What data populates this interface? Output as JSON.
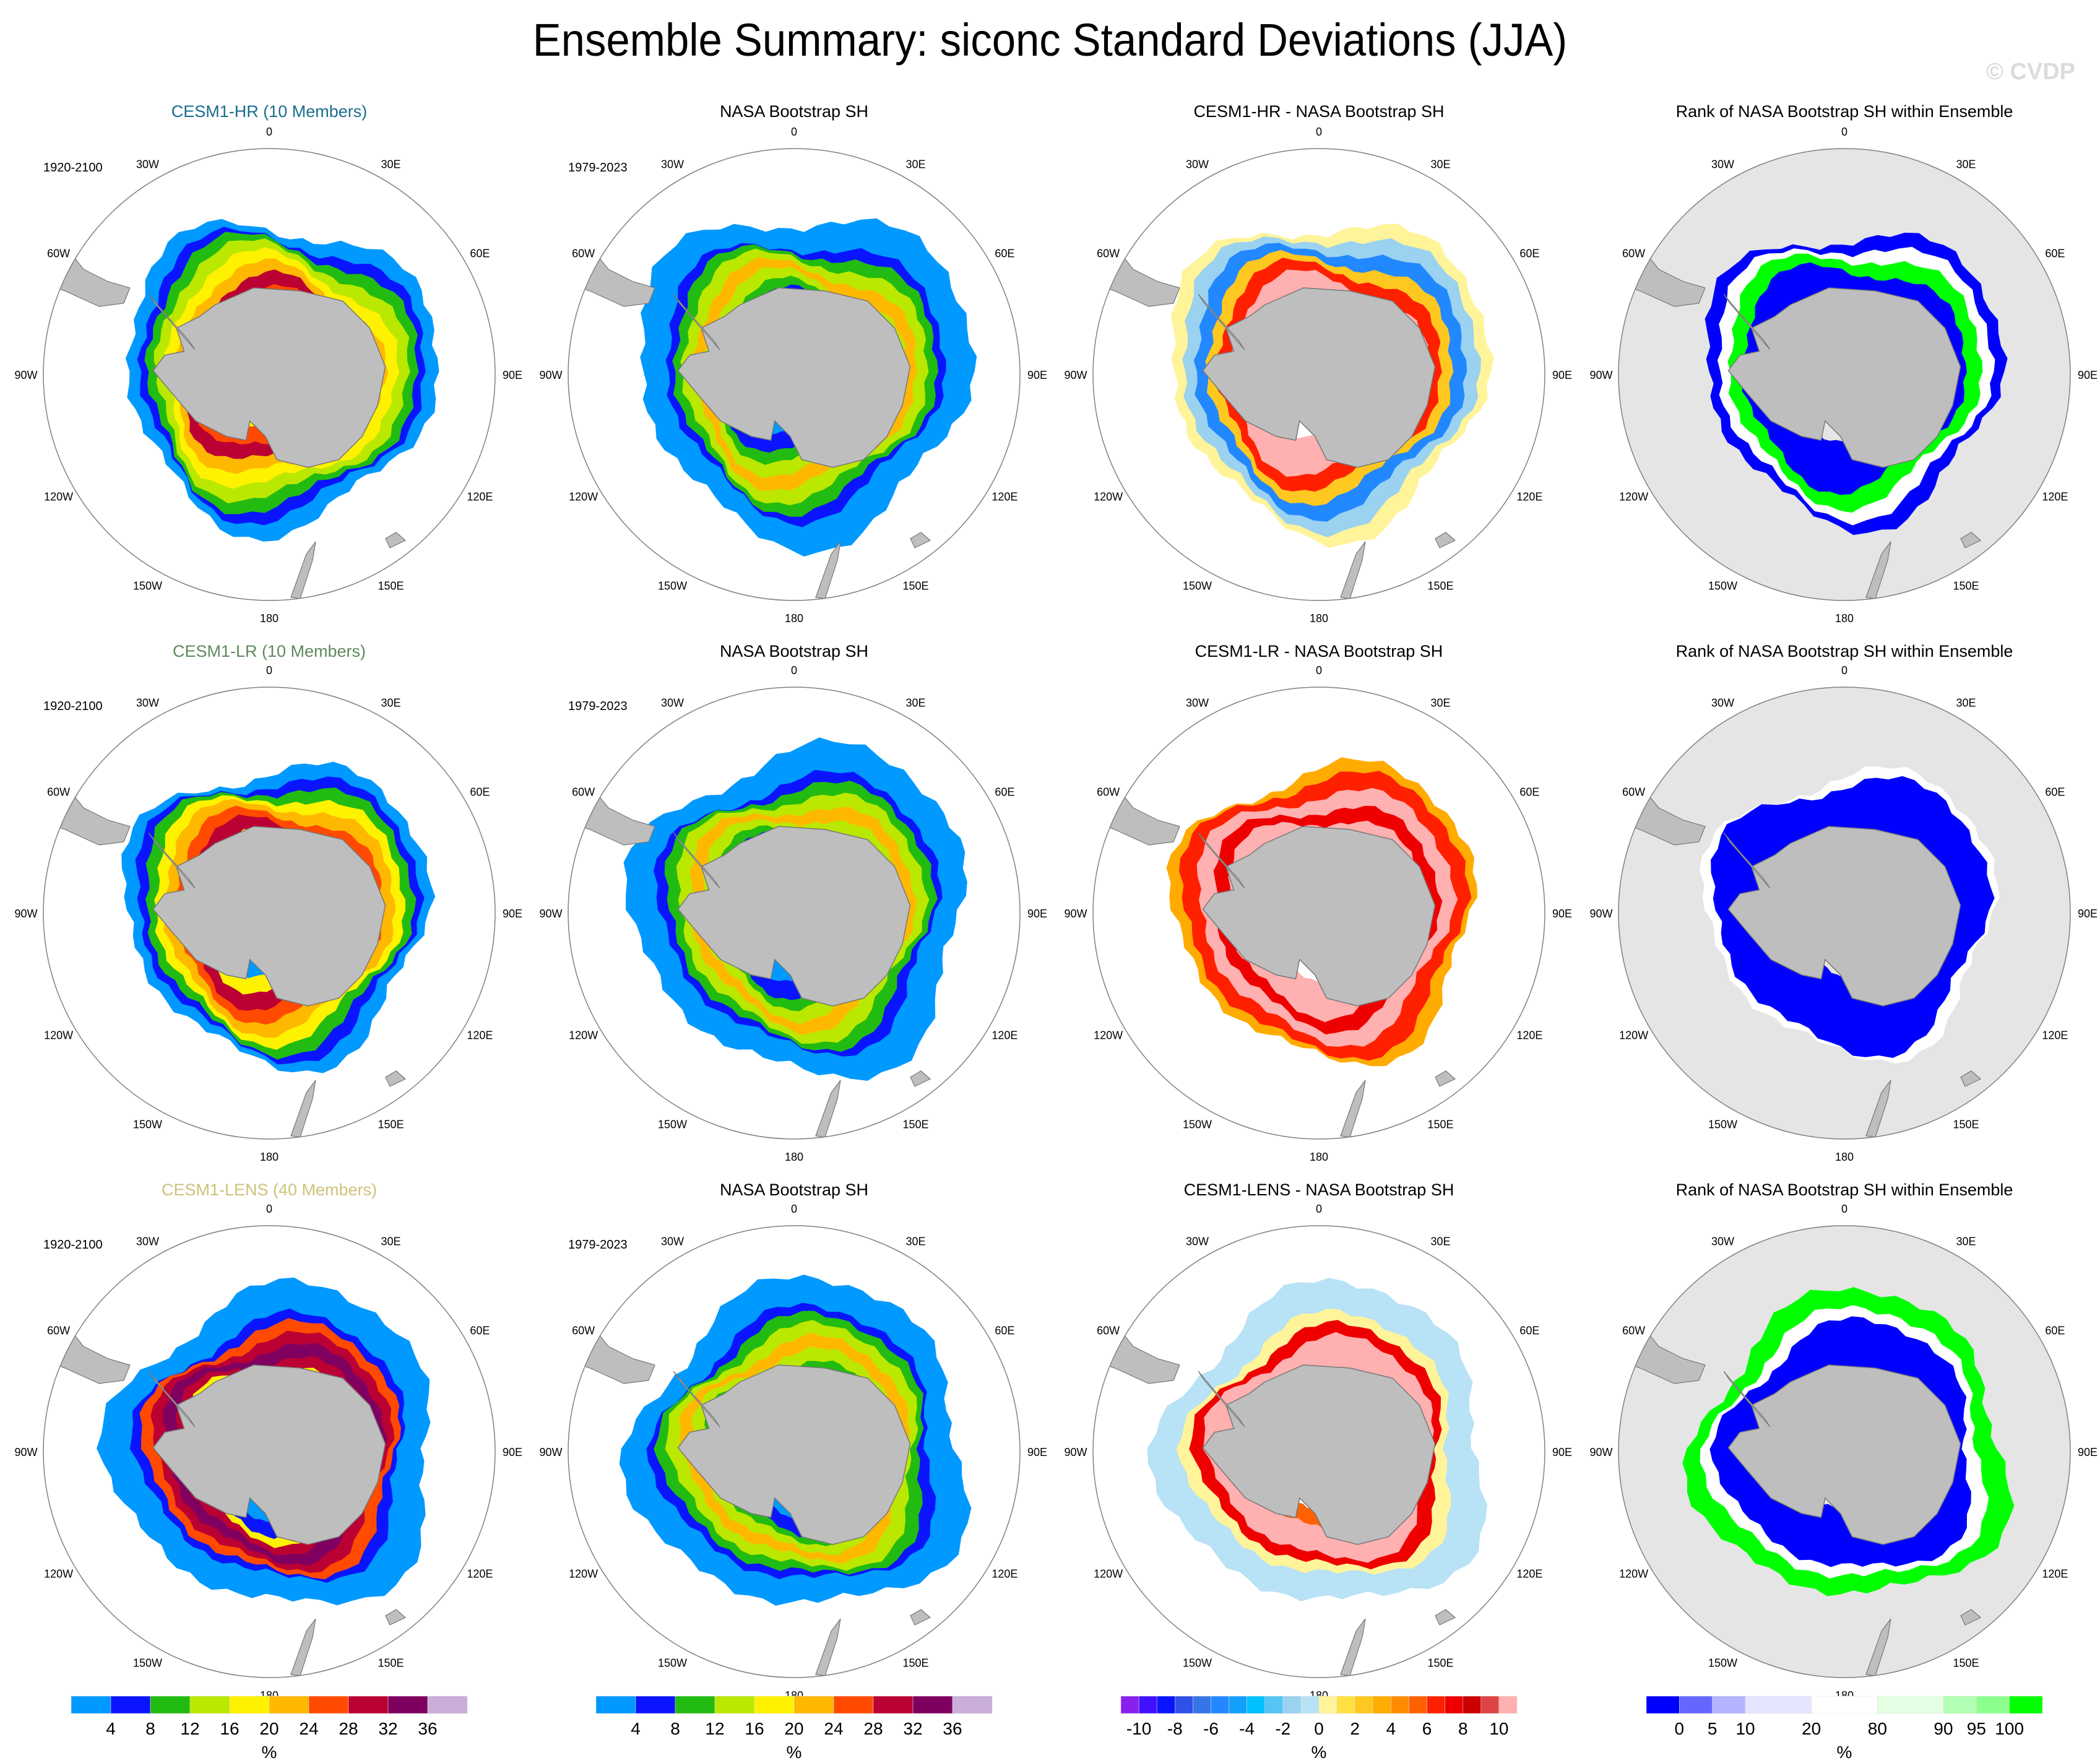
{
  "title": "Ensemble Summary: siconc Standard Deviations (JJA)",
  "watermark": "© CVDP",
  "colors": {
    "land": "#bebebe",
    "rank_background": "#e5e5e5",
    "circle_outline": "#808080",
    "title_hr": "#1a6e8c",
    "title_lr": "#5e8a5e",
    "title_lens": "#cdc27a"
  },
  "colorbars": {
    "std": {
      "colors": [
        "#0099ff",
        "#0a14ff",
        "#22bb11",
        "#bbe800",
        "#fff200",
        "#ffb800",
        "#ff4a00",
        "#bb0033",
        "#800060",
        "#c8aed8"
      ],
      "labels": [
        "4",
        "8",
        "12",
        "16",
        "20",
        "24",
        "28",
        "32",
        "36"
      ],
      "unit": "%"
    },
    "diff": {
      "colors": [
        "#8820ee",
        "#4010ff",
        "#0a14ff",
        "#3050e8",
        "#3575e8",
        "#2288ff",
        "#12a0ff",
        "#00c0ff",
        "#55c5f5",
        "#9ad2ef",
        "#b8e2f5",
        "#fff49a",
        "#ffe040",
        "#ffc820",
        "#ffab00",
        "#ff8c00",
        "#ff6000",
        "#ff2000",
        "#ee0000",
        "#cc0000",
        "#dd4444",
        "#ffb0b0"
      ],
      "labels": [
        "-10",
        "-8",
        "-6",
        "-4",
        "-2",
        "0",
        "2",
        "4",
        "6",
        "8",
        "10"
      ],
      "unit": "%"
    },
    "rank": {
      "colors": [
        "#0000ff",
        "#6666ff",
        "#b3b3ff",
        "#e5e5ff",
        "#ffffff",
        "#e5ffe5",
        "#b3ffb3",
        "#8cff8c",
        "#00ff00"
      ],
      "widths": [
        1,
        1,
        1,
        2,
        2,
        2,
        1,
        1,
        1
      ],
      "labels": [
        "0",
        "5",
        "10",
        "20",
        "80",
        "90",
        "95",
        "100"
      ],
      "unit": "%"
    }
  },
  "lon_labels": [
    "0",
    "30E",
    "60E",
    "90E",
    "120E",
    "150E",
    "180",
    "150W",
    "120W",
    "90W",
    "60W",
    "30W"
  ],
  "rows": [
    {
      "panels": [
        {
          "title": "CESM1-HR (10 Members)",
          "title_color": "#1a6e8c",
          "period": "1920-2100",
          "type": "std",
          "field": "hr"
        },
        {
          "title": "NASA Bootstrap SH",
          "title_color": "#000000",
          "period": "1979-2023",
          "type": "std",
          "field": "obs"
        },
        {
          "title": "CESM1-HR - NASA Bootstrap SH",
          "title_color": "#000000",
          "period": "",
          "type": "diff",
          "field": "diff_hr"
        },
        {
          "title": "Rank of NASA Bootstrap SH within Ensemble",
          "title_color": "#000000",
          "period": "",
          "type": "rank",
          "field": "rank_hr"
        }
      ]
    },
    {
      "panels": [
        {
          "title": "CESM1-LR (10 Members)",
          "title_color": "#5e8a5e",
          "period": "1920-2100",
          "type": "std",
          "field": "lr"
        },
        {
          "title": "NASA Bootstrap SH",
          "title_color": "#000000",
          "period": "1979-2023",
          "type": "std",
          "field": "obs"
        },
        {
          "title": "CESM1-LR - NASA Bootstrap SH",
          "title_color": "#000000",
          "period": "",
          "type": "diff",
          "field": "diff_lr"
        },
        {
          "title": "Rank of NASA Bootstrap SH within Ensemble",
          "title_color": "#000000",
          "period": "",
          "type": "rank",
          "field": "rank_lr"
        }
      ]
    },
    {
      "panels": [
        {
          "title": "CESM1-LENS (40 Members)",
          "title_color": "#cdc27a",
          "period": "1920-2100",
          "type": "std",
          "field": "lens"
        },
        {
          "title": "NASA Bootstrap SH",
          "title_color": "#000000",
          "period": "1979-2023",
          "type": "std",
          "field": "obs"
        },
        {
          "title": "CESM1-LENS - NASA Bootstrap SH",
          "title_color": "#000000",
          "period": "",
          "type": "diff",
          "field": "diff_lens"
        },
        {
          "title": "Rank of NASA Bootstrap SH within Ensemble",
          "title_color": "#000000",
          "period": "",
          "type": "rank",
          "field": "rank_lens"
        }
      ]
    }
  ],
  "chart_data": {
    "type": "heatmap",
    "title": "Ensemble Summary: siconc Standard Deviations (JJA)",
    "projection": "south polar stereographic",
    "variable": "siconc",
    "season": "JJA",
    "grid": false,
    "legend_placement": "bottom",
    "panels_description": "3 rows x 4 columns: model std, observed std, model minus observed, rank of observations within ensemble",
    "fields": {
      "hr": {
        "rings": [
          [
            0.35,
            "#fff200"
          ],
          [
            0.45,
            "#ff4a00"
          ],
          [
            0.52,
            "#bb0033"
          ],
          [
            0.58,
            "#ffb800"
          ],
          [
            0.64,
            "#fff200"
          ],
          [
            0.7,
            "#bbe800"
          ],
          [
            0.75,
            "#22bb11"
          ],
          [
            0.79,
            "#0a14ff"
          ],
          [
            0.86,
            "#0099ff"
          ]
        ]
      },
      "obs": {
        "rings": [
          [
            0.36,
            "#0099ff"
          ],
          [
            0.45,
            "#0a14ff"
          ],
          [
            0.5,
            "#22bb11"
          ],
          [
            0.56,
            "#bbe800"
          ],
          [
            0.62,
            "#ffb800"
          ],
          [
            0.68,
            "#bbe800"
          ],
          [
            0.73,
            "#22bb11"
          ],
          [
            0.77,
            "#0a14ff"
          ],
          [
            0.92,
            "#0099ff"
          ]
        ]
      },
      "lr": {
        "rings": [
          [
            0.36,
            "#0099ff"
          ],
          [
            0.44,
            "#fff200"
          ],
          [
            0.52,
            "#bb0033"
          ],
          [
            0.58,
            "#ff4a00"
          ],
          [
            0.64,
            "#ffb800"
          ],
          [
            0.69,
            "#fff200"
          ],
          [
            0.74,
            "#22bb11"
          ],
          [
            0.78,
            "#0a14ff"
          ],
          [
            0.84,
            "#0099ff"
          ]
        ]
      },
      "lens": {
        "rings": [
          [
            0.36,
            "#0099ff"
          ],
          [
            0.44,
            "#0a14ff"
          ],
          [
            0.49,
            "#fff200"
          ],
          [
            0.54,
            "#bb0033"
          ],
          [
            0.6,
            "#800060"
          ],
          [
            0.65,
            "#bb0033"
          ],
          [
            0.7,
            "#ff4a00"
          ],
          [
            0.74,
            "#0a14ff"
          ],
          [
            0.9,
            "#0099ff"
          ]
        ]
      },
      "diff_hr": {
        "rings": [
          [
            0.35,
            "#ffffff"
          ],
          [
            0.55,
            "#ffb0b0"
          ],
          [
            0.62,
            "#ff2000"
          ],
          [
            0.68,
            "#ffc820"
          ],
          [
            0.75,
            "#2288ff"
          ],
          [
            0.82,
            "#9ad2ef"
          ],
          [
            0.88,
            "#fff49a"
          ]
        ]
      },
      "diff_lr": {
        "rings": [
          [
            0.35,
            "#ffffff"
          ],
          [
            0.55,
            "#ffb0b0"
          ],
          [
            0.62,
            "#ee0000"
          ],
          [
            0.7,
            "#ffb0b0"
          ],
          [
            0.78,
            "#ff2000"
          ],
          [
            0.83,
            "#ffab00"
          ]
        ]
      },
      "diff_lens": {
        "rings": [
          [
            0.35,
            "#ffffff"
          ],
          [
            0.45,
            "#ff6000"
          ],
          [
            0.62,
            "#ffb0b0"
          ],
          [
            0.68,
            "#ee0000"
          ],
          [
            0.74,
            "#fff49a"
          ],
          [
            0.9,
            "#b8e2f5"
          ]
        ]
      },
      "rank_hr": {
        "rings": [
          [
            0.35,
            "#e5e5e5"
          ],
          [
            0.62,
            "#0000ff"
          ],
          [
            0.7,
            "#00ff00"
          ],
          [
            0.76,
            "#ffffff"
          ],
          [
            0.82,
            "#0000ff"
          ]
        ]
      },
      "rank_lr": {
        "rings": [
          [
            0.35,
            "#e5e5e5"
          ],
          [
            0.76,
            "#0000ff"
          ],
          [
            0.8,
            "#ffffff"
          ]
        ]
      },
      "rank_lens": {
        "rings": [
          [
            0.35,
            "#e5e5e5"
          ],
          [
            0.62,
            "#0000ff"
          ],
          [
            0.7,
            "#0000ff"
          ],
          [
            0.76,
            "#ffffff"
          ],
          [
            0.86,
            "#00ff00"
          ]
        ]
      }
    },
    "colorbars": [
      {
        "panel_column": 1,
        "levels": [
          4,
          8,
          12,
          16,
          20,
          24,
          28,
          32,
          36
        ],
        "unit": "%"
      },
      {
        "panel_column": 2,
        "levels": [
          4,
          8,
          12,
          16,
          20,
          24,
          28,
          32,
          36
        ],
        "unit": "%"
      },
      {
        "panel_column": 3,
        "levels": [
          -10,
          -9,
          -8,
          -7,
          -6,
          -5,
          -4,
          -3,
          -2,
          -1,
          0,
          1,
          2,
          3,
          4,
          5,
          6,
          7,
          8,
          9,
          10
        ],
        "labeled": [
          -10,
          -8,
          -6,
          -4,
          -2,
          0,
          2,
          4,
          6,
          8,
          10
        ],
        "unit": "%"
      },
      {
        "panel_column": 4,
        "levels": [
          0,
          5,
          10,
          20,
          80,
          90,
          95,
          100
        ],
        "unit": "%"
      }
    ]
  }
}
